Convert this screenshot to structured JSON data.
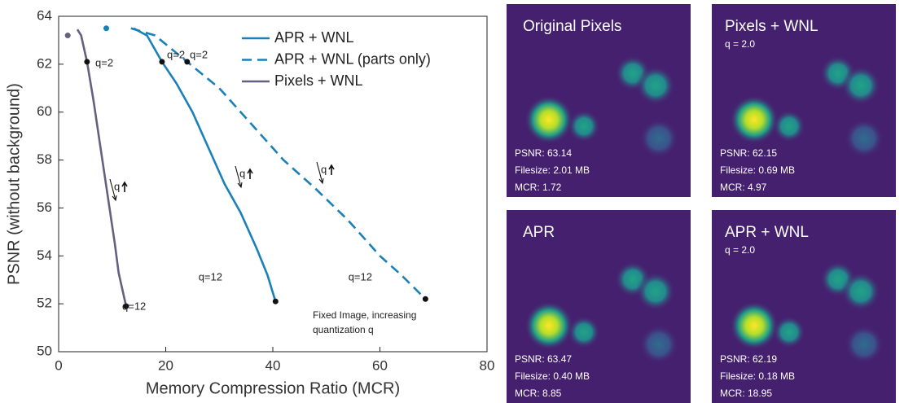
{
  "chart_data": {
    "type": "line",
    "xlabel": "Memory Compression Ratio (MCR)",
    "ylabel": "PSNR (without background)",
    "xlim": [
      0,
      80
    ],
    "ylim": [
      50,
      64
    ],
    "xticks": [
      0,
      20,
      40,
      60,
      80
    ],
    "yticks": [
      50,
      52,
      54,
      56,
      58,
      60,
      62,
      64
    ],
    "grid": false,
    "legend": "upper right",
    "series": [
      {
        "name": "APR + WNL",
        "color": "#1a80b8",
        "dashed": false,
        "x": [
          8.9,
          null,
          14,
          16.5,
          19.3,
          22,
          25,
          28,
          31,
          34,
          37,
          39,
          40.5
        ],
        "values": [
          63.5,
          null,
          63.5,
          63.2,
          62.1,
          61.2,
          60,
          58.5,
          57,
          55.8,
          54.3,
          53.2,
          52.1
        ]
      },
      {
        "name": "APR + WNL (parts only)",
        "color": "#1a80b8",
        "dashed": true,
        "x": [
          13.5,
          18,
          24,
          30,
          36,
          42,
          48,
          54,
          60,
          64,
          68.5
        ],
        "values": [
          63.5,
          63.2,
          62.1,
          61,
          59.5,
          58,
          56.8,
          55.5,
          54,
          53.2,
          52.2
        ]
      },
      {
        "name": "Pixels + WNL",
        "color": "#64607f",
        "dashed": false,
        "x": [
          1.7,
          null,
          3.5,
          4.2,
          5.3,
          6.5,
          7.5,
          8.5,
          9.5,
          10.5,
          11.2,
          12,
          12.6
        ],
        "values": [
          63.2,
          null,
          63.45,
          63.2,
          62.1,
          60.5,
          59,
          57.5,
          56,
          54.5,
          53.3,
          52.5,
          51.9
        ]
      }
    ],
    "annotations": [
      "q=2",
      "q=2",
      "q=2",
      "q=12",
      "q=12",
      "q=12",
      "q",
      "q",
      "q",
      "Fixed Image, increasing",
      "quantization q"
    ]
  },
  "panels": [
    {
      "title": "Original Pixels",
      "stats": [
        "PSNR: 63.14",
        "Filesize: 2.01 MB",
        "MCR: 1.72"
      ]
    },
    {
      "title": "Pixels + WNL",
      "subtitle": "q = 2.0",
      "stats": [
        "PSNR: 62.15",
        "Filesize: 0.69 MB",
        "MCR: 4.97"
      ]
    },
    {
      "title": "APR",
      "stats": [
        "PSNR: 63.47",
        "Filesize: 0.40 MB",
        "MCR:  8.85"
      ]
    },
    {
      "title": "APR + WNL",
      "subtitle": "q = 2.0",
      "stats": [
        "PSNR: 62.19",
        "Filesize: 0.18 MB",
        "MCR: 18.95"
      ]
    }
  ]
}
